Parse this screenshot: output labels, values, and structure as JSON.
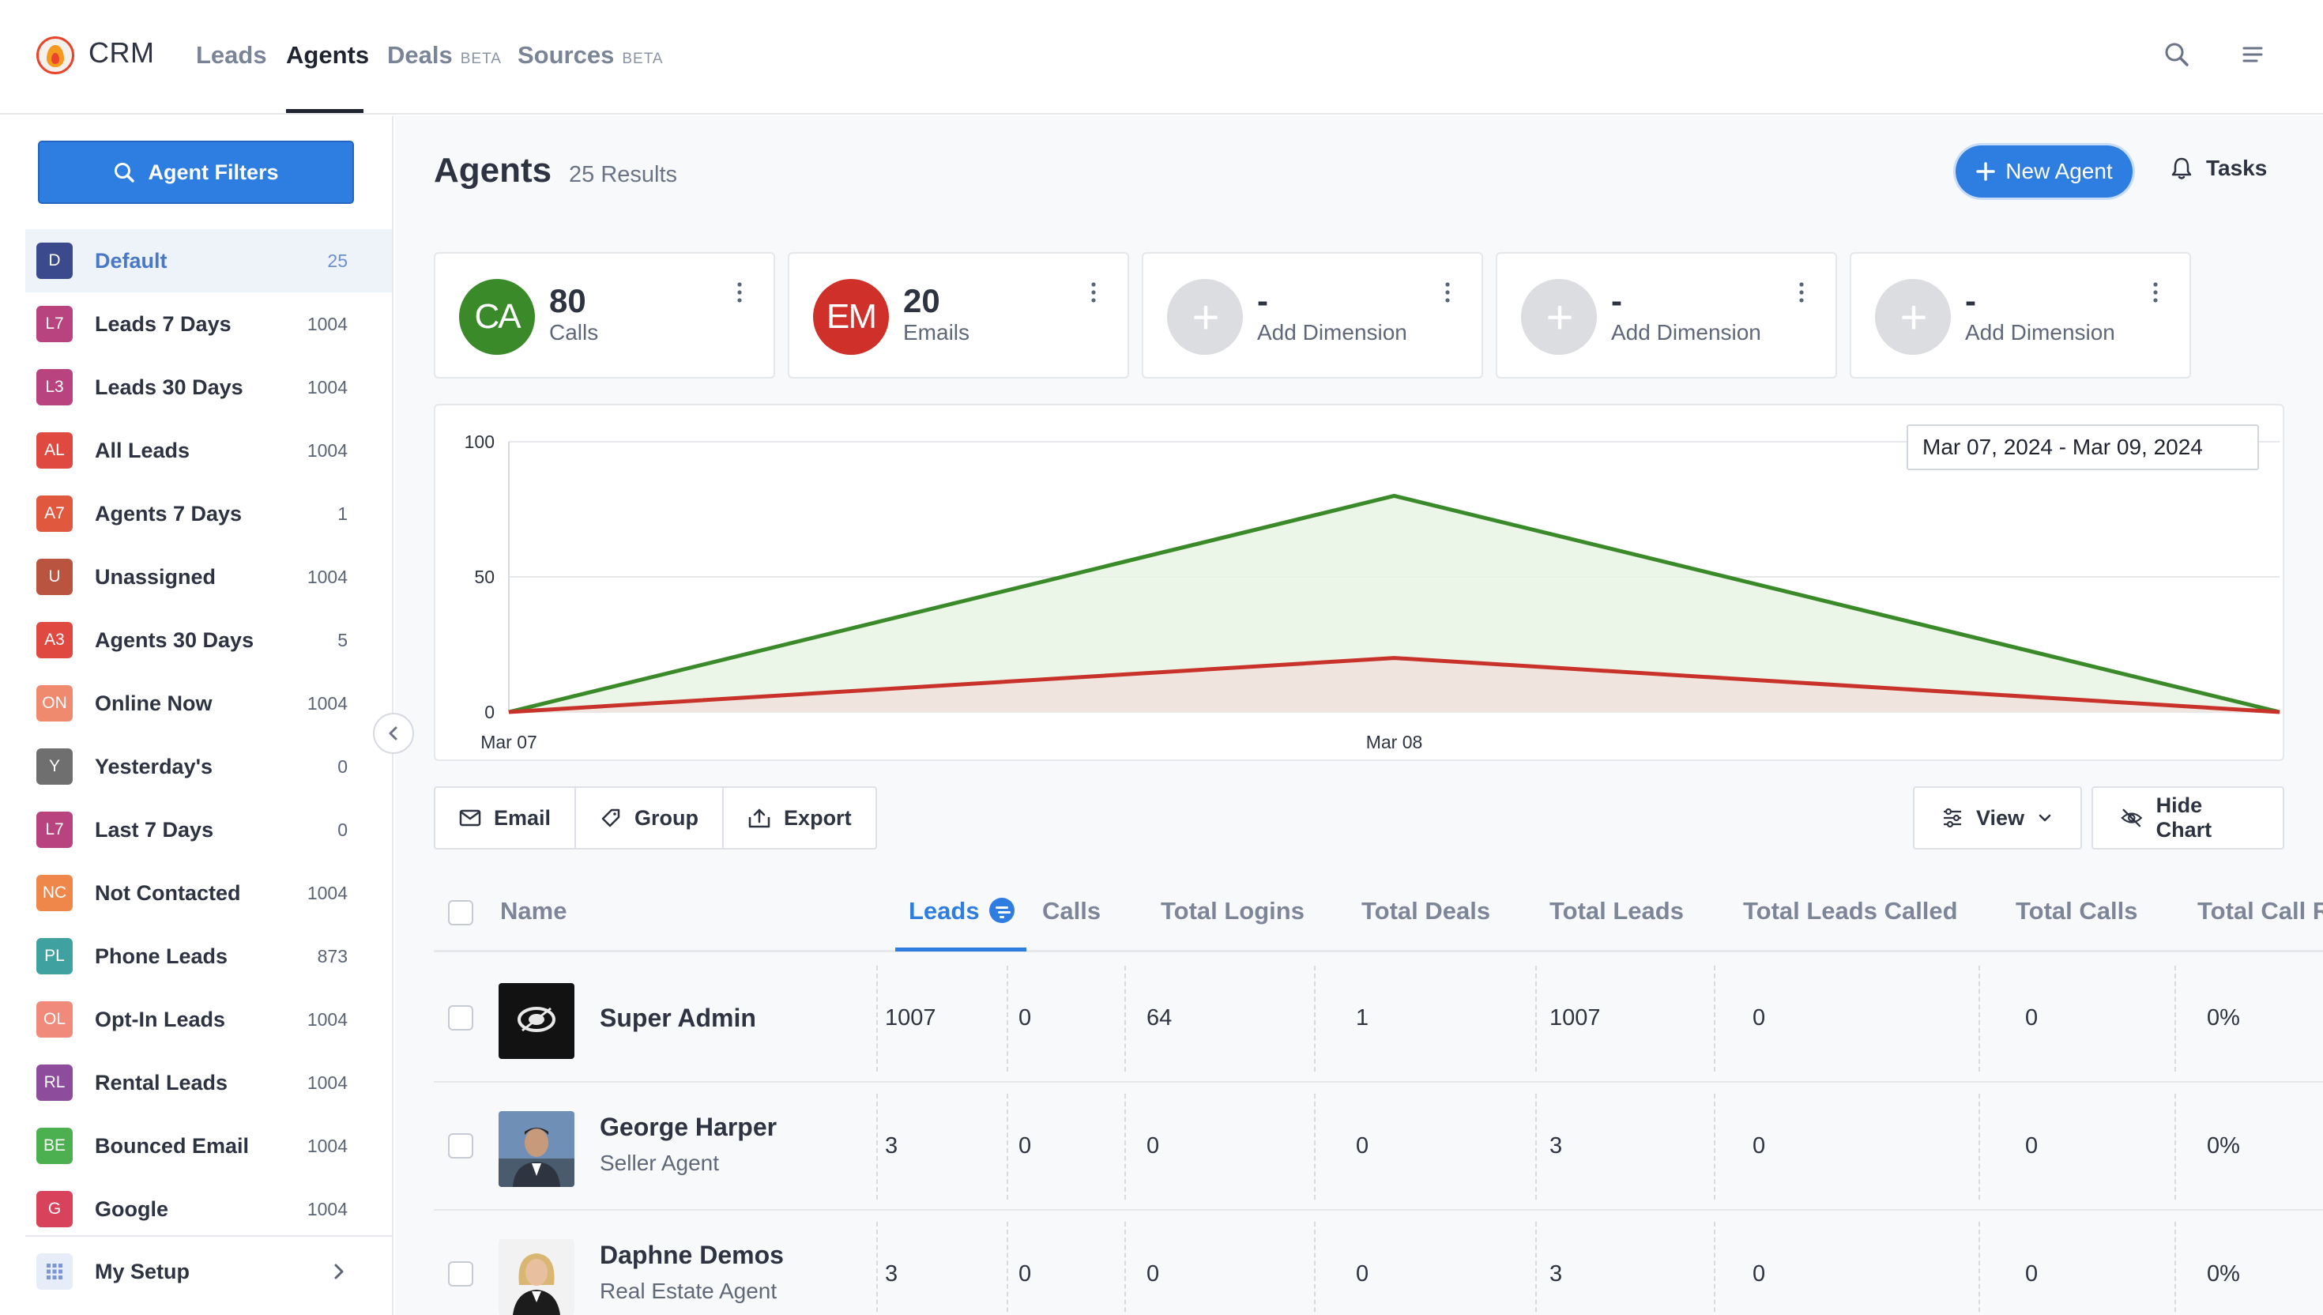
{
  "nav": {
    "app_title": "CRM",
    "items": [
      {
        "label": "Leads",
        "beta": ""
      },
      {
        "label": "Agents",
        "beta": ""
      },
      {
        "label": "Deals",
        "beta": "BETA"
      },
      {
        "label": "Sources",
        "beta": "BETA"
      }
    ],
    "active_index": 1
  },
  "sidebar": {
    "filter_button": "Agent Filters",
    "items": [
      {
        "badge": "D",
        "label": "Default",
        "count": "25",
        "color": "#3b4a8c"
      },
      {
        "badge": "L7",
        "label": "Leads 7 Days",
        "count": "1004",
        "color": "#b8437f"
      },
      {
        "badge": "L3",
        "label": "Leads 30 Days",
        "count": "1004",
        "color": "#b8437f"
      },
      {
        "badge": "AL",
        "label": "All Leads",
        "count": "1004",
        "color": "#e0493f"
      },
      {
        "badge": "A7",
        "label": "Agents 7 Days",
        "count": "1",
        "color": "#e0593f"
      },
      {
        "badge": "U",
        "label": "Unassigned",
        "count": "1004",
        "color": "#b8543f"
      },
      {
        "badge": "A3",
        "label": "Agents 30 Days",
        "count": "5",
        "color": "#e0493f"
      },
      {
        "badge": "ON",
        "label": "Online Now",
        "count": "1004",
        "color": "#f08a6e"
      },
      {
        "badge": "Y",
        "label": "Yesterday's",
        "count": "0",
        "color": "#6f6f6f"
      },
      {
        "badge": "L7",
        "label": "Last 7 Days",
        "count": "0",
        "color": "#b8437f"
      },
      {
        "badge": "NC",
        "label": "Not Contacted",
        "count": "1004",
        "color": "#f0874a"
      },
      {
        "badge": "PL",
        "label": "Phone Leads",
        "count": "873",
        "color": "#3fa1a0"
      },
      {
        "badge": "OL",
        "label": "Opt-In Leads",
        "count": "1004",
        "color": "#f08a7a"
      },
      {
        "badge": "RL",
        "label": "Rental Leads",
        "count": "1004",
        "color": "#8e4c9c"
      },
      {
        "badge": "BE",
        "label": "Bounced Email",
        "count": "1004",
        "color": "#4caf50"
      },
      {
        "badge": "G",
        "label": "Google",
        "count": "1004",
        "color": "#d8435b"
      }
    ],
    "setup_label": "My Setup"
  },
  "header": {
    "title": "Agents",
    "results": "25 Results",
    "new_agent": "New Agent",
    "tasks": "Tasks"
  },
  "cards": [
    {
      "initials": "CA",
      "value": "80",
      "label": "Calls",
      "color": "#3a8a2a"
    },
    {
      "initials": "EM",
      "value": "20",
      "label": "Emails",
      "color": "#d0302a"
    },
    {
      "initials": "+",
      "value": "-",
      "label": "Add Dimension",
      "color": "#dcdde0"
    },
    {
      "initials": "+",
      "value": "-",
      "label": "Add Dimension",
      "color": "#dcdde0"
    },
    {
      "initials": "+",
      "value": "-",
      "label": "Add Dimension",
      "color": "#dcdde0"
    }
  ],
  "chart_data": {
    "type": "area",
    "x": [
      "Mar 07",
      "Mar 08",
      "Mar 09"
    ],
    "x_tick_labels": [
      "Mar 07",
      "Mar 08"
    ],
    "series": [
      {
        "values": [
          0,
          80,
          0
        ],
        "color": "#3a8a2a",
        "fill": "#e9f4e5"
      },
      {
        "values": [
          0,
          20,
          0
        ],
        "color": "#c8322a",
        "fill": "#f0e0dc"
      }
    ],
    "y_ticks": [
      "0",
      "50",
      "100"
    ],
    "ylim": [
      0,
      100
    ],
    "grid": true,
    "date_range": "Mar 07, 2024 - Mar 09, 2024"
  },
  "toolbar": {
    "email": "Email",
    "group": "Group",
    "export": "Export",
    "view": "View",
    "hide_chart": "Hide Chart"
  },
  "table": {
    "columns": [
      "Name",
      "Leads",
      "Calls",
      "Total Logins",
      "Total Deals",
      "Total Leads",
      "Total Leads Called",
      "Total Calls",
      "Total Call R"
    ],
    "rows": [
      {
        "name": "Super Admin",
        "role": "",
        "cells": [
          "1007",
          "0",
          "64",
          "1",
          "1007",
          "0",
          "0",
          "0%"
        ]
      },
      {
        "name": "George Harper",
        "role": "Seller Agent",
        "cells": [
          "3",
          "0",
          "0",
          "0",
          "3",
          "0",
          "0",
          "0%"
        ]
      },
      {
        "name": "Daphne Demos",
        "role": "Real Estate Agent",
        "cells": [
          "3",
          "0",
          "0",
          "0",
          "3",
          "0",
          "0",
          "0%"
        ]
      }
    ]
  }
}
